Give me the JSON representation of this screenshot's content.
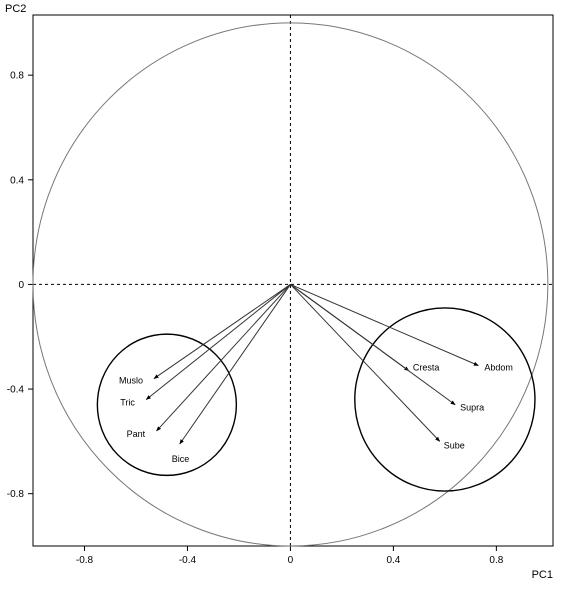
{
  "chart_data": {
    "type": "scatter",
    "subtype": "pca-correlation-circle",
    "xlabel": "PC1",
    "ylabel": "PC2",
    "xlim": [
      -1.0,
      1.02
    ],
    "ylim": [
      -1.0,
      1.03
    ],
    "x_ticks": [
      -0.8,
      -0.4,
      0,
      0.4,
      0.8
    ],
    "x_tick_labels": [
      "-0.8",
      "-0.4",
      "0",
      "0.4",
      "0.8"
    ],
    "y_ticks": [
      -0.8,
      -0.4,
      0,
      0.4,
      0.8
    ],
    "y_tick_labels": [
      "-0.8",
      "-0.4",
      "0",
      "0.4",
      "0.8"
    ],
    "reference_lines": {
      "x": 0,
      "y": 0,
      "style": "dashed"
    },
    "unit_circle": true,
    "vectors": [
      {
        "label": "Muslo",
        "x": -0.53,
        "y": -0.36
      },
      {
        "label": "Tric",
        "x": -0.56,
        "y": -0.44
      },
      {
        "label": "Pant",
        "x": -0.52,
        "y": -0.56
      },
      {
        "label": "Bice",
        "x": -0.43,
        "y": -0.61
      },
      {
        "label": "Cresta",
        "x": 0.46,
        "y": -0.33
      },
      {
        "label": "Abdom",
        "x": 0.73,
        "y": -0.31
      },
      {
        "label": "Supra",
        "x": 0.64,
        "y": -0.46
      },
      {
        "label": "Sube",
        "x": 0.58,
        "y": -0.6
      }
    ],
    "cluster_circles": [
      {
        "center": [
          -0.48,
          -0.46
        ],
        "radius": 0.27
      },
      {
        "center": [
          0.6,
          -0.44
        ],
        "radius": 0.35
      }
    ]
  }
}
